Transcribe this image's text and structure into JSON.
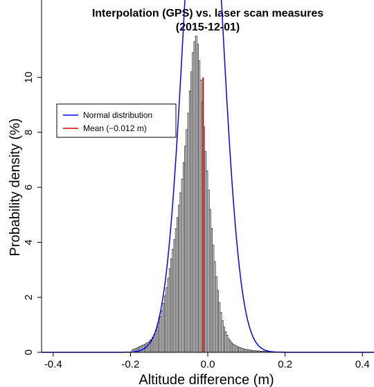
{
  "chart_data": {
    "type": "histogram",
    "title": "Interpolation (GPS) vs. laser scan measures",
    "subtitle": "(2015-12-01)",
    "xlabel": "Altitude difference (m)",
    "ylabel": "Probability density (%)",
    "xlim": [
      -0.43,
      0.43
    ],
    "ylim": [
      0,
      11.5
    ],
    "x_ticks": [
      -0.4,
      -0.2,
      0.0,
      0.2,
      0.4
    ],
    "x_tick_labels": [
      "-0.4",
      "-0.2",
      "0.0",
      "0.2",
      "0.4"
    ],
    "y_ticks": [
      0,
      2,
      4,
      6,
      8,
      10
    ],
    "y_tick_labels": [
      "0",
      "2",
      "4",
      "6",
      "8",
      "10"
    ],
    "bin_width": 0.004,
    "bins_start": -0.196,
    "bin_values": [
      0.1,
      0.12,
      0.14,
      0.16,
      0.2,
      0.22,
      0.25,
      0.27,
      0.3,
      0.33,
      0.37,
      0.42,
      0.47,
      0.55,
      0.65,
      0.78,
      0.92,
      1.1,
      1.3,
      1.52,
      1.78,
      2.05,
      2.35,
      2.7,
      3.05,
      3.4,
      3.75,
      4.1,
      4.5,
      4.9,
      5.35,
      5.8,
      6.3,
      6.9,
      7.5,
      8.1,
      8.7,
      9.5,
      10.2,
      10.9,
      11.3,
      11.5,
      11.2,
      10.6,
      9.9,
      9.1,
      8.2,
      7.3,
      6.6,
      5.9,
      5.2,
      4.5,
      3.9,
      3.3,
      2.75,
      2.25,
      1.8,
      1.45,
      1.15,
      0.92,
      0.75,
      0.62,
      0.5,
      0.42,
      0.35,
      0.3,
      0.26,
      0.23,
      0.2,
      0.18,
      0.16,
      0.14,
      0.12,
      0.11,
      0.1,
      0.09,
      0.08,
      0.07,
      0.06,
      0.06,
      0.05,
      0.05,
      0.05,
      0.04,
      0.04,
      0.04,
      0.03,
      0.03,
      0.03,
      0.03,
      0.02,
      0.02,
      0.02,
      0.02,
      0.02,
      0.01,
      0.01,
      0.01,
      0.01
    ],
    "normal_curve": {
      "mean": -0.012,
      "sd": 0.048,
      "color": "#0000ff"
    },
    "mean_line": {
      "x": -0.012,
      "y_top": 10.0,
      "color": "#cc0000"
    },
    "legend": [
      {
        "label": "Normal distribution",
        "color": "#0000ff"
      },
      {
        "label": "Mean (−0.012 m)",
        "color": "#cc0000"
      }
    ],
    "legend_position": "upper-left",
    "grid": false
  }
}
